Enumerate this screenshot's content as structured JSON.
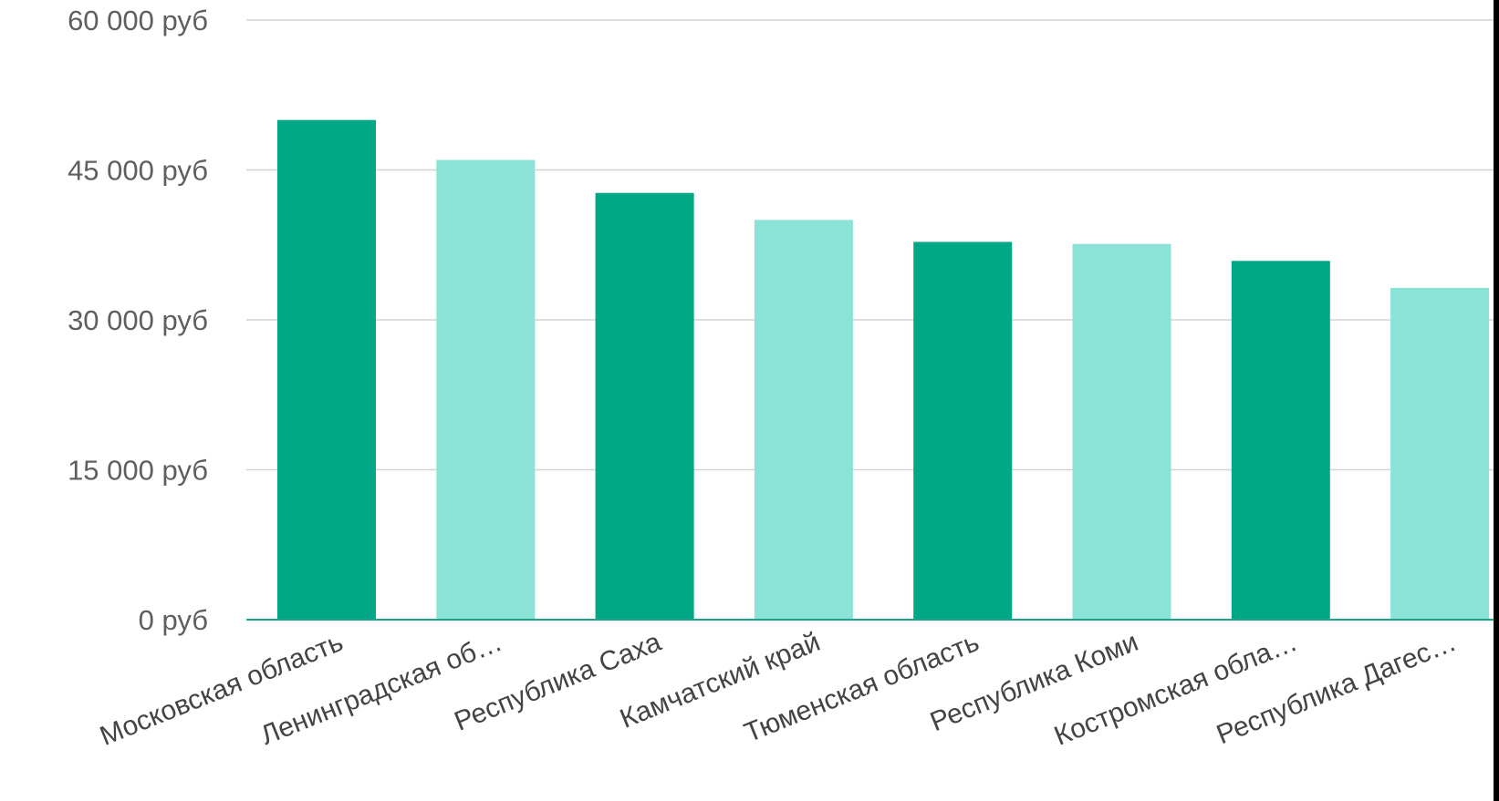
{
  "colors": {
    "bar_dark": "#00a886",
    "bar_light": "#8ae3d6",
    "baseline": "#1aa58a",
    "grid": "#d3d3d3"
  },
  "chart_data": {
    "type": "bar",
    "title": "",
    "xlabel": "",
    "ylabel": "",
    "ylim": [
      0,
      60000
    ],
    "y_ticks": [
      0,
      15000,
      30000,
      45000,
      60000
    ],
    "y_tick_labels": [
      "0 руб",
      "15 000 руб",
      "30 000 руб",
      "45 000 руб",
      "60 000 руб"
    ],
    "categories": [
      "Московская область",
      "Ленинградская об…",
      "Республика Саха",
      "Камчатский край",
      "Тюменская область",
      "Республика Коми",
      "Костромская обла…",
      "Республика Дагес…"
    ],
    "values": [
      50000,
      46000,
      42700,
      40000,
      37800,
      37600,
      35900,
      33200
    ],
    "bar_colors": [
      "#00a886",
      "#8ae3d6",
      "#00a886",
      "#8ae3d6",
      "#00a886",
      "#8ae3d6",
      "#00a886",
      "#8ae3d6"
    ],
    "grid": true,
    "legend": "none"
  }
}
